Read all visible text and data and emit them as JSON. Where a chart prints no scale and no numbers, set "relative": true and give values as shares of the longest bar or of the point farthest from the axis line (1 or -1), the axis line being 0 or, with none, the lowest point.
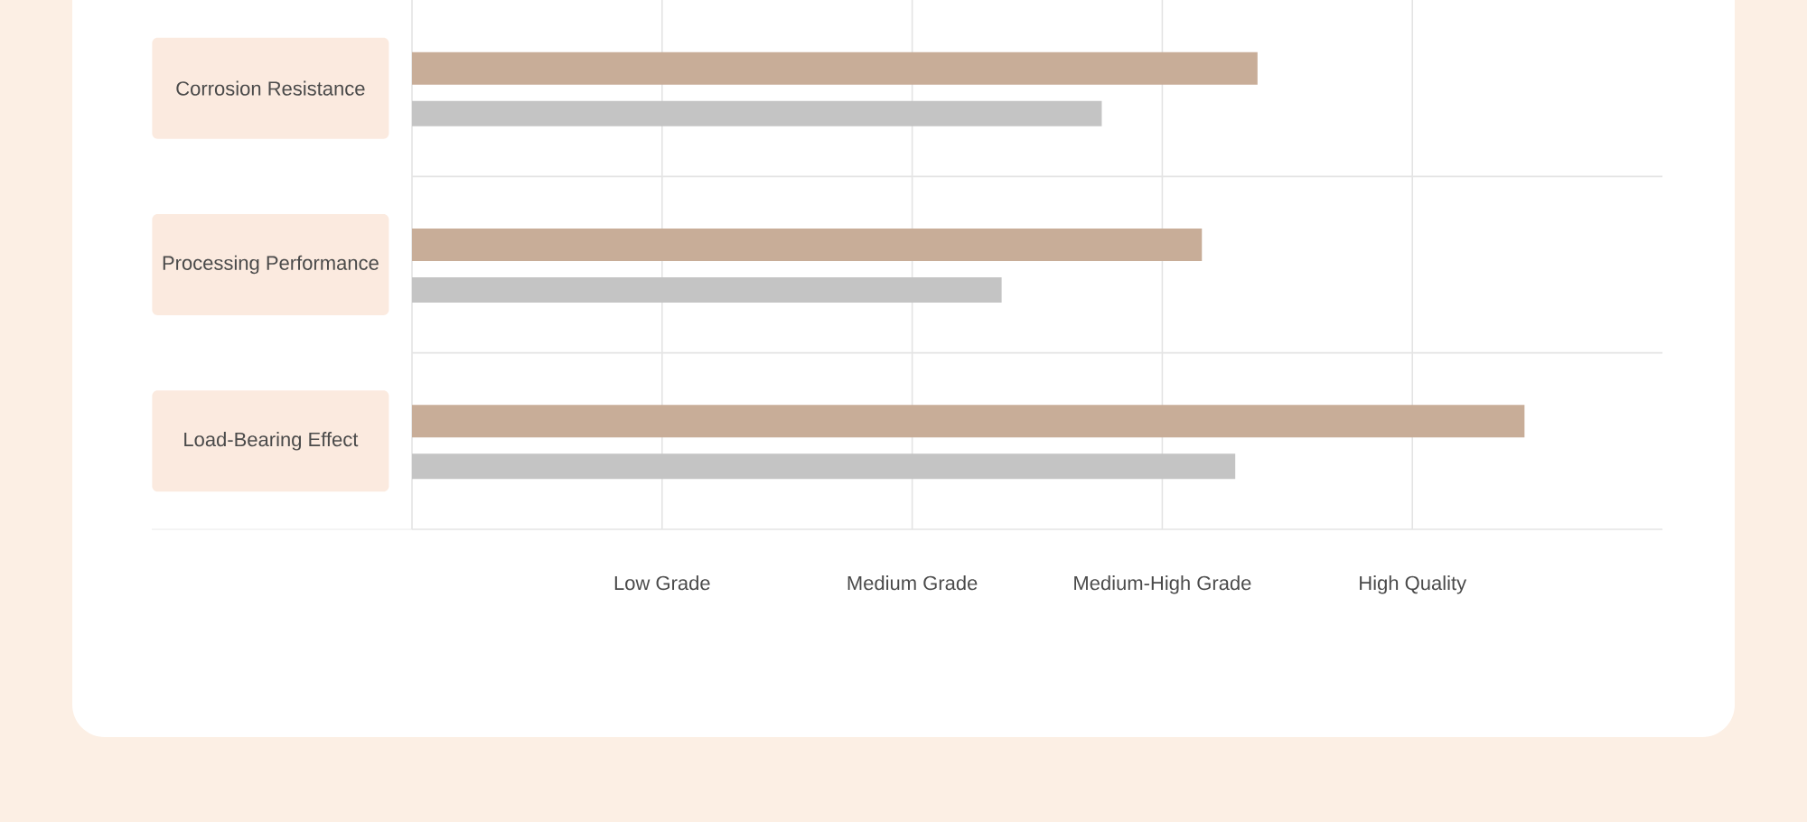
{
  "chart_data": {
    "type": "bar",
    "orientation": "horizontal",
    "relative": true,
    "categories": [
      "Corrosion Resistance",
      "Processing Performance",
      "Load-Bearing Effect"
    ],
    "series": [
      {
        "color": "#c8ad98",
        "values": [
          0.76,
          0.71,
          1
        ]
      },
      {
        "color": "#c4c4c4",
        "values": [
          0.62,
          0.53,
          0.74
        ]
      }
    ],
    "annotations": [
      "Low Grade",
      "Medium Grade",
      "Medium-High Grade",
      "High Quality"
    ],
    "grid": true
  }
}
